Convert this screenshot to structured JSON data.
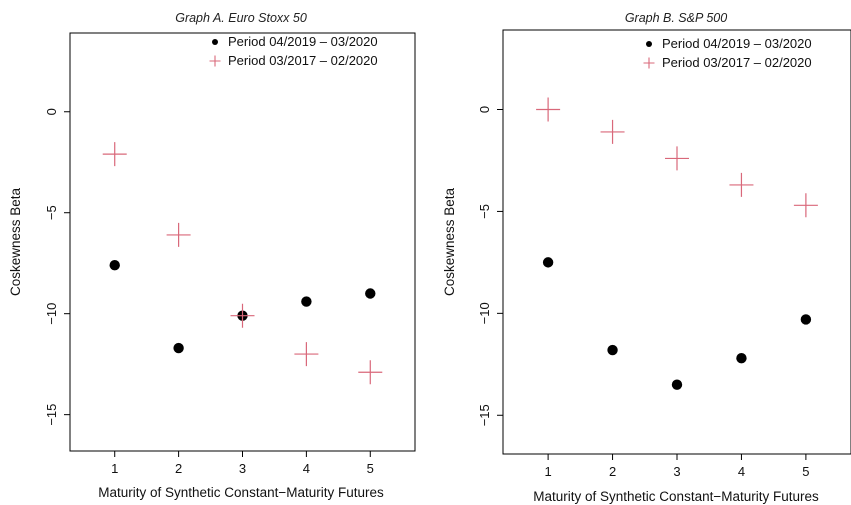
{
  "chart_data": [
    {
      "type": "scatter",
      "title": "Graph A. Euro Stoxx 50",
      "xlabel": "Maturity of Synthetic Constant−Maturity Futures",
      "ylabel": "Coskewness Beta",
      "x_ticks": [
        "1",
        "2",
        "3",
        "4",
        "5"
      ],
      "y_ticks": [
        "0",
        "−5",
        "−10",
        "−15"
      ],
      "xlim": [
        0.3,
        5.7
      ],
      "ylim": [
        -16.8,
        3.9
      ],
      "legend_position": "top-right",
      "grid": false,
      "series": [
        {
          "name": "Period 04/2019 – 03/2020",
          "marker": "dot",
          "color": "#000000",
          "x": [
            1,
            2,
            3,
            4,
            5
          ],
          "y": [
            -7.6,
            -11.7,
            -10.1,
            -9.4,
            -9.0
          ]
        },
        {
          "name": "Period 03/2017 – 02/2020",
          "marker": "plus",
          "color": "#d9687a",
          "x": [
            1,
            2,
            3,
            4,
            5
          ],
          "y": [
            -2.1,
            -6.1,
            -10.1,
            -12.0,
            -12.9
          ]
        }
      ]
    },
    {
      "type": "scatter",
      "title": "Graph B. S&P 500",
      "xlabel": "Maturity of Synthetic Constant−Maturity Futures",
      "ylabel": "Coskewness Beta",
      "x_ticks": [
        "1",
        "2",
        "3",
        "4",
        "5"
      ],
      "y_ticks": [
        "0",
        "−5",
        "−10",
        "−15"
      ],
      "xlim": [
        0.3,
        5.7
      ],
      "ylim": [
        -16.9,
        3.9
      ],
      "legend_position": "top-right",
      "grid": false,
      "series": [
        {
          "name": "Period 04/2019 – 03/2020",
          "marker": "dot",
          "color": "#000000",
          "x": [
            1,
            2,
            3,
            4,
            5
          ],
          "y": [
            -7.5,
            -11.8,
            -13.5,
            -12.2,
            -10.3
          ]
        },
        {
          "name": "Period 03/2017 – 02/2020",
          "marker": "plus",
          "color": "#d9687a",
          "x": [
            1,
            2,
            3,
            4,
            5
          ],
          "y": [
            0.0,
            -1.1,
            -2.4,
            -3.7,
            -4.7
          ]
        }
      ]
    }
  ]
}
